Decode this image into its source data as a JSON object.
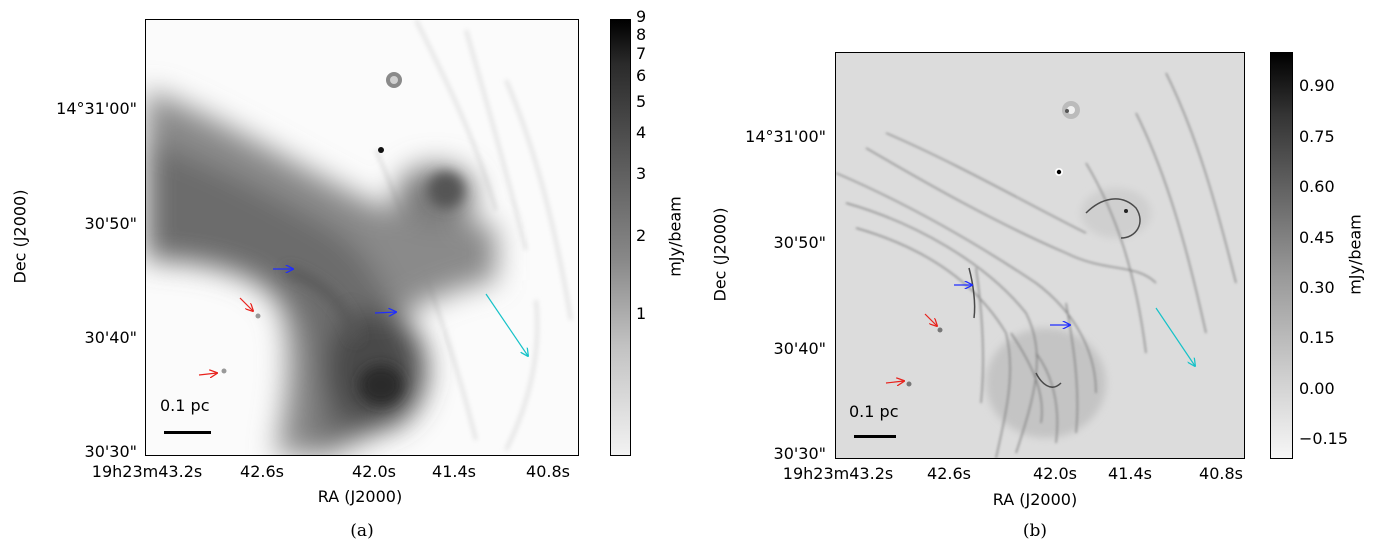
{
  "panel_a": {
    "sublabel": "(a)",
    "x_axis_label": "RA (J2000)",
    "y_axis_label": "Dec (J2000)",
    "x_ticks": [
      "19h23m43.2s",
      "42.6s",
      "42.0s",
      "41.4s",
      "40.8s"
    ],
    "y_ticks": [
      "14°31'00\"",
      "30'50\"",
      "30'40\"",
      "30'30\""
    ],
    "colorbar_label": "mJy/beam",
    "colorbar_ticks": [
      "9",
      "8",
      "7",
      "6",
      "5",
      "4",
      "3",
      "2",
      "1"
    ],
    "scale_bar": "0.1 pc"
  },
  "panel_b": {
    "sublabel": "(b)",
    "x_axis_label": "RA (J2000)",
    "y_axis_label": "Dec (J2000)",
    "x_ticks": [
      "19h23m43.2s",
      "42.6s",
      "42.0s",
      "41.4s",
      "40.8s"
    ],
    "y_ticks": [
      "14°31'00\"",
      "30'50\"",
      "30'40\"",
      "30'30\""
    ],
    "colorbar_label": "mJy/beam",
    "colorbar_ticks": [
      "0.90",
      "0.75",
      "0.60",
      "0.45",
      "0.30",
      "0.15",
      "0.00",
      "−0.15"
    ],
    "scale_bar": "0.1 pc"
  },
  "colors": {
    "arrow_blue": "#1f2dff",
    "arrow_red": "#e8211b",
    "arrow_cyan": "#16c2c8"
  }
}
